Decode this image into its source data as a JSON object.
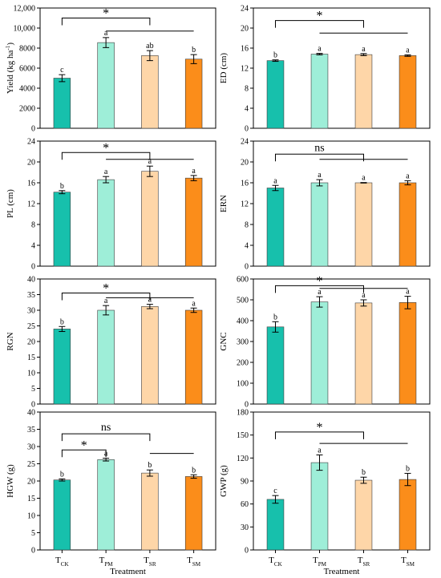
{
  "colors": {
    "TCK": "#17c0ac",
    "TPM": "#9eeed8",
    "TSR": "#fed6a8",
    "TSM": "#fb8d1a",
    "axis": "#000000",
    "bar_edge": "#3c3c3c"
  },
  "chart_data": [
    {
      "type": "bar",
      "categories": [
        {
          "base": "T",
          "sub": "CK"
        },
        {
          "base": "T",
          "sub": "PM"
        },
        {
          "base": "T",
          "sub": "SR"
        },
        {
          "base": "T",
          "sub": "SM"
        }
      ],
      "series_keys": [
        "TCK",
        "TPM",
        "TSR",
        "TSM"
      ],
      "values": [
        5000,
        8550,
        7250,
        6900
      ],
      "errors": [
        350,
        500,
        500,
        450
      ],
      "letters": [
        "c",
        "a",
        "ab",
        "b"
      ],
      "ylabel": {
        "base": "Yield (kg ha",
        "sup": "-1",
        "tail": ")"
      },
      "ylim": [
        0,
        12000
      ],
      "yticks": [
        0,
        2000,
        4000,
        6000,
        8000,
        10000,
        12000
      ],
      "ytick_labels": [
        "0",
        "2000",
        "4000",
        "6000",
        "8000",
        "10,000",
        "12,000"
      ],
      "show_xticks": false,
      "xlabel": "",
      "brackets": [
        {
          "type": "pair",
          "from": 0,
          "to": 2,
          "y": 11000,
          "label": "*"
        },
        {
          "type": "line",
          "from": 1,
          "to": 3,
          "y": 9700,
          "label": ""
        }
      ]
    },
    {
      "type": "bar",
      "categories": [
        {
          "base": "T",
          "sub": "CK"
        },
        {
          "base": "T",
          "sub": "PM"
        },
        {
          "base": "T",
          "sub": "SR"
        },
        {
          "base": "T",
          "sub": "SM"
        }
      ],
      "series_keys": [
        "TCK",
        "TPM",
        "TSR",
        "TSM"
      ],
      "values": [
        13.5,
        14.8,
        14.7,
        14.5
      ],
      "errors": [
        0.15,
        0.15,
        0.2,
        0.15
      ],
      "letters": [
        "b",
        "a",
        "a",
        "a"
      ],
      "ylabel": {
        "base": "ED (cm)"
      },
      "ylim": [
        0,
        24
      ],
      "yticks": [
        0,
        4,
        8,
        12,
        16,
        20,
        24
      ],
      "ytick_labels": [
        "0",
        "4",
        "8",
        "12",
        "16",
        "20",
        "24"
      ],
      "show_xticks": false,
      "xlabel": "",
      "brackets": [
        {
          "type": "pair",
          "from": 0,
          "to": 2,
          "y": 21.5,
          "label": "*"
        },
        {
          "type": "line",
          "from": 1,
          "to": 3,
          "y": 19.0,
          "label": ""
        }
      ]
    },
    {
      "type": "bar",
      "categories": [
        {
          "base": "T",
          "sub": "CK"
        },
        {
          "base": "T",
          "sub": "PM"
        },
        {
          "base": "T",
          "sub": "SR"
        },
        {
          "base": "T",
          "sub": "SM"
        }
      ],
      "series_keys": [
        "TCK",
        "TPM",
        "TSR",
        "TSM"
      ],
      "values": [
        14.2,
        16.6,
        18.2,
        16.9
      ],
      "errors": [
        0.3,
        0.6,
        1.0,
        0.5
      ],
      "letters": [
        "b",
        "a",
        "a",
        "a"
      ],
      "ylabel": {
        "base": "PL (cm)"
      },
      "ylim": [
        0,
        24
      ],
      "yticks": [
        0,
        4,
        8,
        12,
        16,
        20,
        24
      ],
      "ytick_labels": [
        "0",
        "4",
        "8",
        "12",
        "16",
        "20",
        "24"
      ],
      "show_xticks": false,
      "xlabel": "",
      "brackets": [
        {
          "type": "pair",
          "from": 0,
          "to": 2,
          "y": 21.8,
          "label": "*"
        },
        {
          "type": "line",
          "from": 1,
          "to": 3,
          "y": 20.5,
          "label": ""
        }
      ]
    },
    {
      "type": "bar",
      "categories": [
        {
          "base": "T",
          "sub": "CK"
        },
        {
          "base": "T",
          "sub": "PM"
        },
        {
          "base": "T",
          "sub": "SR"
        },
        {
          "base": "T",
          "sub": "SM"
        }
      ],
      "series_keys": [
        "TCK",
        "TPM",
        "TSR",
        "TSM"
      ],
      "values": [
        15.0,
        16.0,
        16.0,
        16.0
      ],
      "errors": [
        0.5,
        0.6,
        0.05,
        0.4
      ],
      "letters": [
        "a",
        "a",
        "a",
        "a"
      ],
      "ylabel": {
        "base": "ERN"
      },
      "ylim": [
        0,
        24
      ],
      "yticks": [
        0,
        4,
        8,
        12,
        16,
        20,
        24
      ],
      "ytick_labels": [
        "0",
        "4",
        "8",
        "12",
        "16",
        "20",
        "24"
      ],
      "show_xticks": false,
      "xlabel": "",
      "brackets": [
        {
          "type": "pair",
          "from": 0,
          "to": 2,
          "y": 21.5,
          "label": "ns"
        },
        {
          "type": "line",
          "from": 1,
          "to": 3,
          "y": 20.5,
          "label": ""
        }
      ]
    },
    {
      "type": "bar",
      "categories": [
        {
          "base": "T",
          "sub": "CK"
        },
        {
          "base": "T",
          "sub": "PM"
        },
        {
          "base": "T",
          "sub": "SR"
        },
        {
          "base": "T",
          "sub": "SM"
        }
      ],
      "series_keys": [
        "TCK",
        "TPM",
        "TSR",
        "TSM"
      ],
      "values": [
        24,
        30,
        31.2,
        30
      ],
      "errors": [
        0.8,
        1.5,
        0.7,
        0.7
      ],
      "letters": [
        "b",
        "a",
        "a",
        "a"
      ],
      "ylabel": {
        "base": "RGN"
      },
      "ylim": [
        0,
        40
      ],
      "yticks": [
        0,
        5,
        10,
        15,
        20,
        25,
        30,
        35,
        40
      ],
      "ytick_labels": [
        "0",
        "5",
        "10",
        "15",
        "20",
        "25",
        "30",
        "35",
        "40"
      ],
      "show_xticks": false,
      "xlabel": "",
      "brackets": [
        {
          "type": "pair",
          "from": 0,
          "to": 2,
          "y": 35.5,
          "label": "*"
        },
        {
          "type": "line",
          "from": 1,
          "to": 3,
          "y": 34.0,
          "label": ""
        }
      ]
    },
    {
      "type": "bar",
      "categories": [
        {
          "base": "T",
          "sub": "CK"
        },
        {
          "base": "T",
          "sub": "PM"
        },
        {
          "base": "T",
          "sub": "SR"
        },
        {
          "base": "T",
          "sub": "SM"
        }
      ],
      "series_keys": [
        "TCK",
        "TPM",
        "TSR",
        "TSM"
      ],
      "values": [
        370,
        490,
        485,
        487
      ],
      "errors": [
        25,
        25,
        15,
        30
      ],
      "letters": [
        "b",
        "a",
        "a",
        "a"
      ],
      "ylabel": {
        "base": "GNC"
      },
      "ylim": [
        0,
        600
      ],
      "yticks": [
        0,
        100,
        200,
        300,
        400,
        500,
        600
      ],
      "ytick_labels": [
        "0",
        "100",
        "200",
        "300",
        "400",
        "500",
        "600"
      ],
      "show_xticks": false,
      "xlabel": "",
      "brackets": [
        {
          "type": "pair",
          "from": 0,
          "to": 2,
          "y": 568,
          "label": "*"
        },
        {
          "type": "line",
          "from": 1,
          "to": 3,
          "y": 555,
          "label": ""
        }
      ]
    },
    {
      "type": "bar",
      "categories": [
        {
          "base": "T",
          "sub": "CK"
        },
        {
          "base": "T",
          "sub": "PM"
        },
        {
          "base": "T",
          "sub": "SR"
        },
        {
          "base": "T",
          "sub": "SM"
        }
      ],
      "series_keys": [
        "TCK",
        "TPM",
        "TSR",
        "TSM"
      ],
      "values": [
        20.3,
        26.2,
        22.3,
        21.3
      ],
      "errors": [
        0.3,
        0.4,
        0.9,
        0.5
      ],
      "letters": [
        "b",
        "a",
        "b",
        "b"
      ],
      "ylabel": {
        "base": "HGW (g)"
      },
      "ylim": [
        0,
        40
      ],
      "yticks": [
        0,
        5,
        10,
        15,
        20,
        25,
        30,
        35,
        40
      ],
      "ytick_labels": [
        "0",
        "5",
        "10",
        "15",
        "20",
        "25",
        "30",
        "35",
        "40"
      ],
      "show_xticks": true,
      "xlabel": "Treatment",
      "brackets": [
        {
          "type": "pair",
          "from": 0,
          "to": 2,
          "y": 33.7,
          "label": "ns"
        },
        {
          "type": "pair",
          "from": 0,
          "to": 1,
          "y": 29.0,
          "label": "*"
        },
        {
          "type": "line",
          "from": 2,
          "to": 3,
          "y": 28.0,
          "label": ""
        }
      ]
    },
    {
      "type": "bar",
      "categories": [
        {
          "base": "T",
          "sub": "CK"
        },
        {
          "base": "T",
          "sub": "PM"
        },
        {
          "base": "T",
          "sub": "SR"
        },
        {
          "base": "T",
          "sub": "SM"
        }
      ],
      "series_keys": [
        "TCK",
        "TPM",
        "TSR",
        "TSM"
      ],
      "values": [
        66,
        114,
        91,
        92
      ],
      "errors": [
        5,
        10,
        4,
        8
      ],
      "letters": [
        "c",
        "a",
        "b",
        "b"
      ],
      "ylabel": {
        "base": "GWP (g)"
      },
      "ylim": [
        0,
        180
      ],
      "yticks": [
        0,
        30,
        60,
        90,
        120,
        150,
        180
      ],
      "ytick_labels": [
        "0",
        "30",
        "60",
        "90",
        "120",
        "150",
        "180"
      ],
      "show_xticks": true,
      "xlabel": "Treatment",
      "brackets": [
        {
          "type": "pair",
          "from": 0,
          "to": 2,
          "y": 154,
          "label": "*"
        },
        {
          "type": "line",
          "from": 1,
          "to": 3,
          "y": 139,
          "label": ""
        }
      ]
    }
  ]
}
